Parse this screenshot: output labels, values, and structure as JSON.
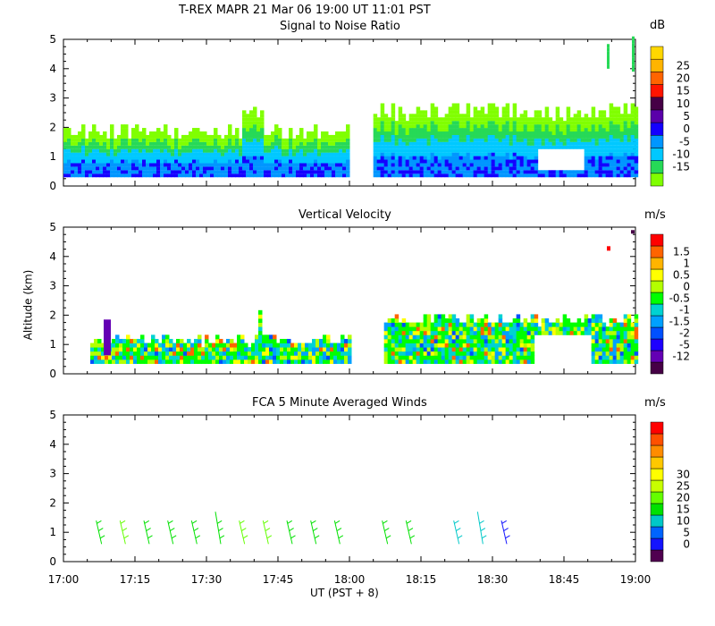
{
  "figure": {
    "title": "T-REX   MAPR 21 Mar 06   19:00 UT   11:01   PST",
    "ylabel": "Altitude (km)",
    "xlabel": "UT  (PST + 8)",
    "x_ticks": [
      "17:00",
      "17:15",
      "17:30",
      "17:45",
      "18:00",
      "18:15",
      "18:30",
      "18:45",
      "19:00"
    ],
    "y_ticks": [
      "0",
      "1",
      "2",
      "3",
      "4",
      "5"
    ]
  },
  "chart_data": [
    {
      "type": "heatmap",
      "title": "Signal to Noise Ratio",
      "xlabel": "UT  (PST + 8)",
      "ylabel": "Altitude (km)",
      "xlim": [
        "17:00",
        "19:00"
      ],
      "ylim": [
        0,
        5
      ],
      "colorbar": {
        "unit": "dB",
        "levels": [
          -15,
          -10,
          -5,
          0,
          5,
          10,
          15,
          20,
          25
        ],
        "colors": [
          "#80ff00",
          "#26d957",
          "#00c8ff",
          "#0096ff",
          "#1400ff",
          "#5a00aa",
          "#460046",
          "#ff1400",
          "#ff6400",
          "#ffb400",
          "#ffd700"
        ]
      },
      "coverage": [
        {
          "from": "17:00",
          "to": "18:00",
          "bottom_km": 0.3,
          "top_km": 1.8
        },
        {
          "from": "18:05",
          "to": "19:00",
          "bottom_km": 0.3,
          "top_km": 2.5
        }
      ]
    },
    {
      "type": "heatmap",
      "title": "Vertical Velocity",
      "xlabel": "UT  (PST + 8)",
      "ylabel": "Altitude (km)",
      "xlim": [
        "17:00",
        "19:00"
      ],
      "ylim": [
        0,
        5
      ],
      "colorbar": {
        "unit": "m/s",
        "levels": [
          -12,
          -5,
          -2,
          -1.5,
          -1,
          -0.5,
          0,
          0.5,
          1,
          1.5
        ],
        "colors": [
          "#460046",
          "#6400b4",
          "#1e00ff",
          "#0050ff",
          "#00a0ff",
          "#00d2d2",
          "#00ff00",
          "#b4ff00",
          "#ffff00",
          "#ffb400",
          "#ff6400",
          "#ff0000"
        ]
      }
    },
    {
      "type": "scatter",
      "title": "FCA 5 Minute Averaged Winds",
      "xlabel": "UT  (PST + 8)",
      "ylabel": "Altitude (km)",
      "xlim": [
        "17:00",
        "19:00"
      ],
      "ylim": [
        0,
        5
      ],
      "colorbar": {
        "unit": "m/s",
        "levels": [
          0,
          5,
          10,
          15,
          20,
          25,
          30
        ],
        "colors": [
          "#500050",
          "#1414ff",
          "#0064ff",
          "#00c8c8",
          "#00e100",
          "#64ff00",
          "#c8ff00",
          "#ffff00",
          "#ffc800",
          "#ff8c00",
          "#ff5000",
          "#ff0000"
        ]
      },
      "barb_times": [
        "17:08",
        "17:13",
        "17:18",
        "17:23",
        "17:28",
        "17:33",
        "17:38",
        "17:43",
        "17:48",
        "17:53",
        "17:58",
        "18:08",
        "18:13",
        "18:23",
        "18:28",
        "18:33"
      ],
      "barb_altitude_km": [
        0.6,
        1.4
      ]
    }
  ]
}
